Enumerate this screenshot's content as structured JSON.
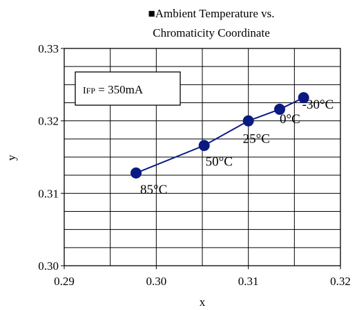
{
  "chart_data": {
    "type": "line",
    "title_line1": "■Ambient Temperature vs.",
    "title_line2": "Chromaticity Coordinate",
    "xlabel": "x",
    "ylabel": "y",
    "xlim": [
      0.29,
      0.32
    ],
    "ylim": [
      0.3,
      0.33
    ],
    "grid": true,
    "x_ticks": [
      "0.29",
      "0.30",
      "0.31",
      "0.32"
    ],
    "y_ticks": [
      "0.30",
      "0.31",
      "0.32",
      "0.33"
    ],
    "x_tick_values": [
      0.29,
      0.3,
      0.31,
      0.32
    ],
    "y_tick_values": [
      0.3,
      0.31,
      0.32,
      0.33
    ],
    "x_grid_step": 0.005,
    "y_grid_step": 0.0025,
    "annotation": {
      "prefix": "I",
      "subscript": "FP",
      "suffix": " = 350mA"
    },
    "series": [
      {
        "color": "#0a1a82",
        "points": [
          {
            "x": 0.2978,
            "y": 0.3128,
            "label": "85°C"
          },
          {
            "x": 0.3052,
            "y": 0.3166,
            "label": "50°C"
          },
          {
            "x": 0.31,
            "y": 0.32,
            "label": "25°C"
          },
          {
            "x": 0.3134,
            "y": 0.3216,
            "label": "0°C"
          },
          {
            "x": 0.316,
            "y": 0.3232,
            "label": "-30°C"
          }
        ]
      }
    ]
  }
}
